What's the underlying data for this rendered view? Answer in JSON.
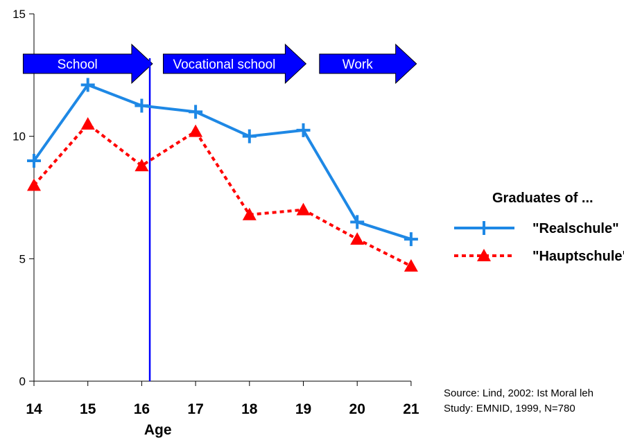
{
  "chart_data": {
    "type": "line",
    "x": [
      14,
      15,
      16,
      17,
      18,
      19,
      20,
      21
    ],
    "xlabel": "Age",
    "ylabel": "",
    "ylim": [
      0,
      15
    ],
    "yticks": [
      0,
      5,
      10,
      15
    ],
    "grid": false,
    "series": [
      {
        "name": "\"Realschule\"",
        "values": [
          9.0,
          12.1,
          11.25,
          11.0,
          10.0,
          10.25,
          6.5,
          5.8
        ],
        "color": "#1e88e5",
        "line": "solid",
        "marker": "plus"
      },
      {
        "name": "\"Hauptschule\"",
        "values": [
          8.0,
          10.5,
          8.8,
          10.2,
          6.8,
          7.0,
          5.8,
          4.7
        ],
        "color": "#ff0000",
        "line": "dotted",
        "marker": "triangle"
      }
    ],
    "legend_title": "Graduates of ...",
    "legend_position": "right",
    "phases": [
      {
        "label": "School",
        "from": 13.8,
        "to": 16.2
      },
      {
        "label": "Vocational school",
        "from": 16.4,
        "to": 19.05
      },
      {
        "label": "Work",
        "from": 19.3,
        "to": 21.1
      }
    ],
    "phase_color": "#0000ff",
    "divider_at": 16.15,
    "source_lines": [
      "Source: Lind, 2002: Ist Moral leh",
      "Study: EMNID, 1999, N=780"
    ]
  }
}
